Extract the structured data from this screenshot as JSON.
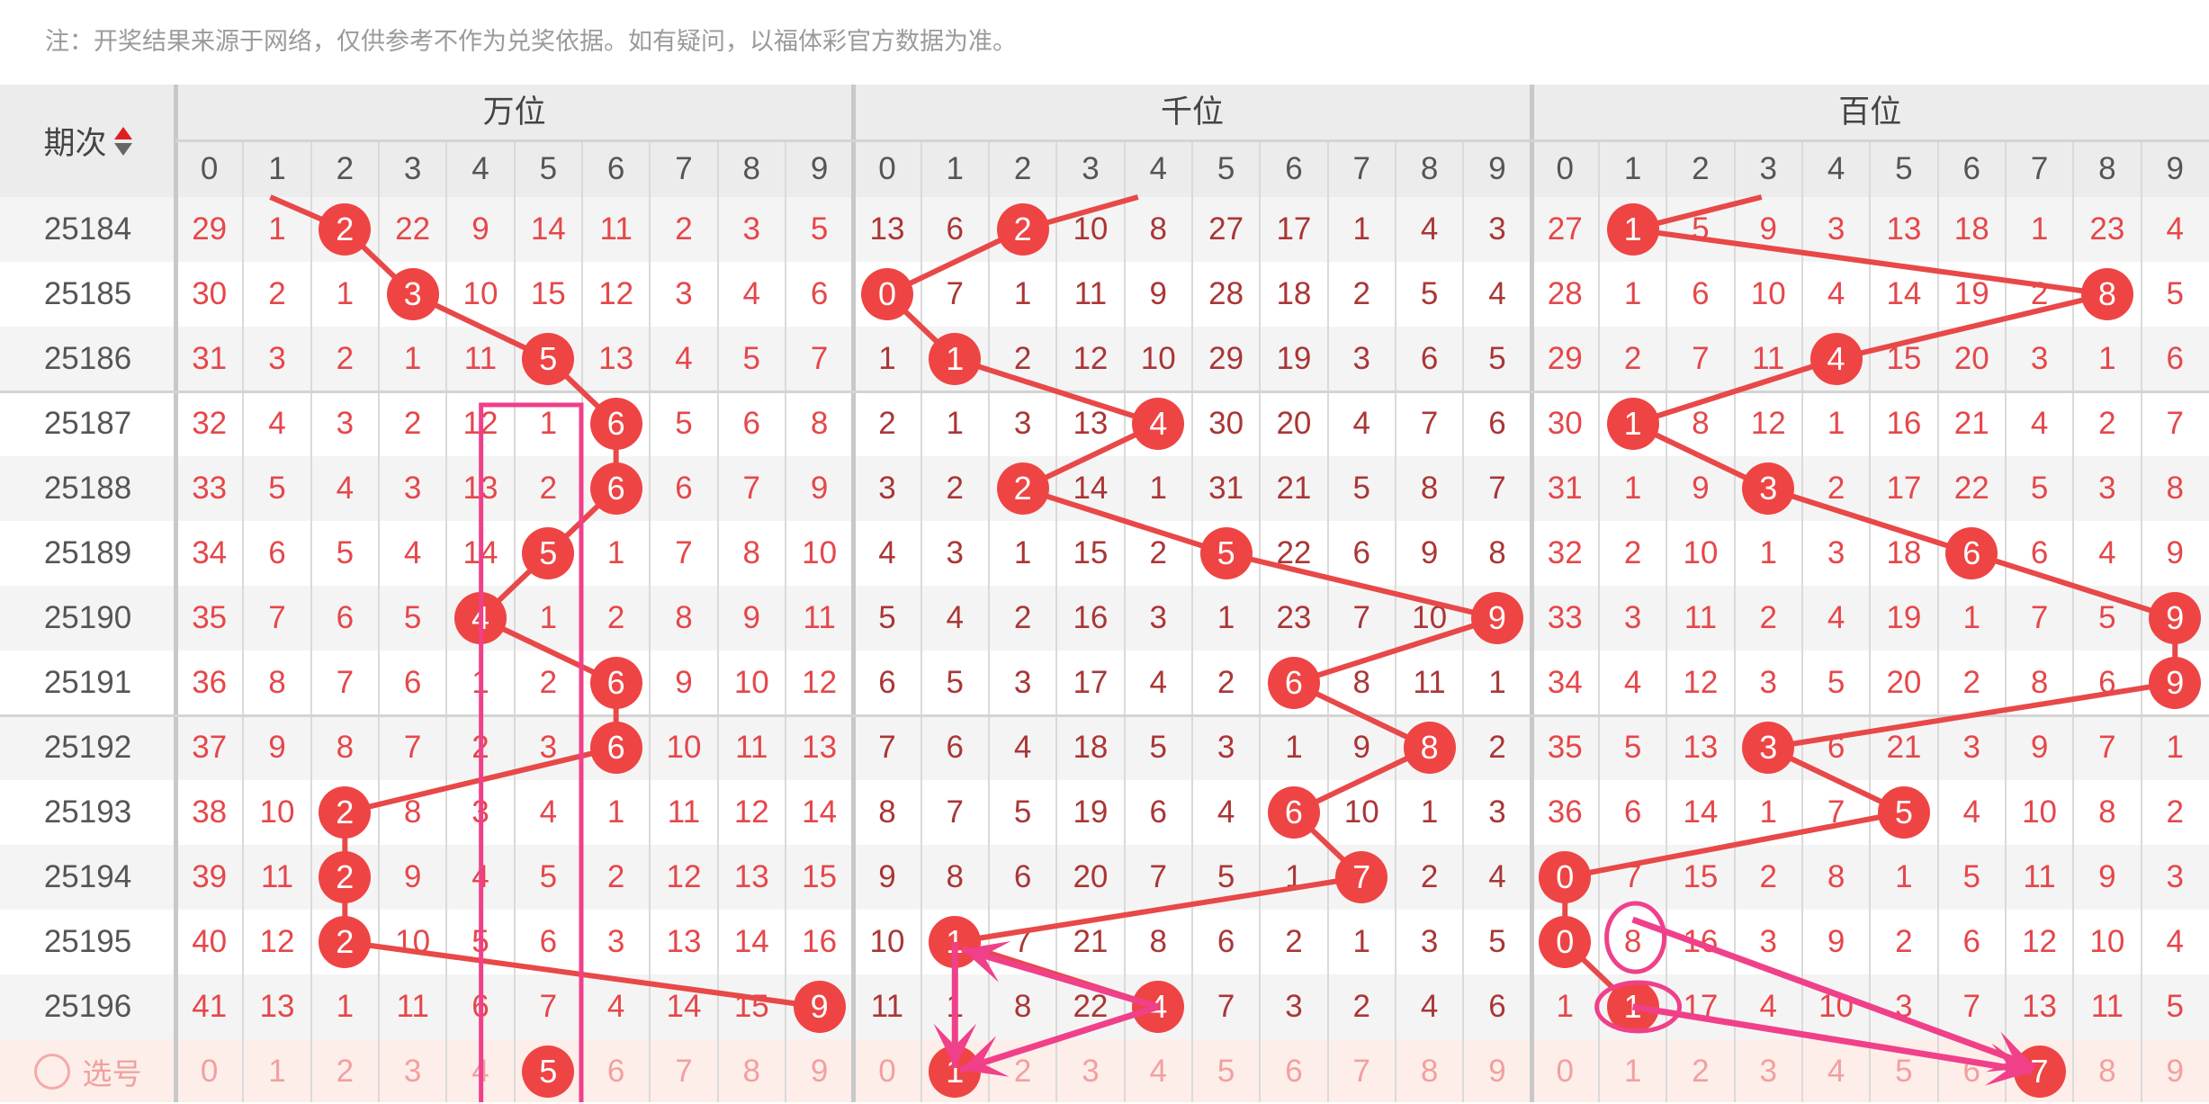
{
  "note": "注：开奖结果来源于网络，仅供参考不作为兑奖依据。如有疑问，以福体彩官方数据为准。",
  "header": {
    "period_label": "期次",
    "sections": [
      {
        "key": "wan",
        "title": "万位"
      },
      {
        "key": "qian",
        "title": "千位"
      },
      {
        "key": "bai",
        "title": "百位"
      }
    ],
    "digits": [
      "0",
      "1",
      "2",
      "3",
      "4",
      "5",
      "6",
      "7",
      "8",
      "9"
    ]
  },
  "colors": {
    "ball": "#ef4444",
    "line": "#e84848",
    "annotation": "#f0408a",
    "number_outer": "#e5474a",
    "number_middle": "#aa3636"
  },
  "rows": [
    {
      "period": "25184",
      "wan": [
        29,
        1,
        2,
        22,
        9,
        14,
        11,
        2,
        3,
        5
      ],
      "qian": [
        13,
        6,
        2,
        10,
        8,
        27,
        17,
        1,
        4,
        3
      ],
      "bai": [
        27,
        1,
        5,
        9,
        3,
        13,
        18,
        1,
        23,
        4
      ],
      "win": {
        "wan": 2,
        "qian": 2,
        "bai": 1
      }
    },
    {
      "period": "25185",
      "wan": [
        30,
        2,
        1,
        3,
        10,
        15,
        12,
        3,
        4,
        6
      ],
      "qian": [
        0,
        7,
        1,
        11,
        9,
        28,
        18,
        2,
        5,
        4
      ],
      "bai": [
        28,
        1,
        6,
        10,
        4,
        14,
        19,
        2,
        8,
        5
      ],
      "win": {
        "wan": 3,
        "qian": 0,
        "bai": 8
      }
    },
    {
      "period": "25186",
      "wan": [
        31,
        3,
        2,
        1,
        11,
        5,
        13,
        4,
        5,
        7
      ],
      "qian": [
        1,
        1,
        2,
        12,
        10,
        29,
        19,
        3,
        6,
        5
      ],
      "bai": [
        29,
        2,
        7,
        11,
        4,
        15,
        20,
        3,
        1,
        6
      ],
      "win": {
        "wan": 5,
        "qian": 1,
        "bai": 4
      }
    },
    {
      "period": "25187",
      "wan": [
        32,
        4,
        3,
        2,
        12,
        1,
        6,
        5,
        6,
        8
      ],
      "qian": [
        2,
        1,
        3,
        13,
        4,
        30,
        20,
        4,
        7,
        6
      ],
      "bai": [
        30,
        1,
        8,
        12,
        1,
        16,
        21,
        4,
        2,
        7
      ],
      "win": {
        "wan": 6,
        "qian": 4,
        "bai": 1
      }
    },
    {
      "period": "25188",
      "wan": [
        33,
        5,
        4,
        3,
        13,
        2,
        6,
        6,
        7,
        9
      ],
      "qian": [
        3,
        2,
        2,
        14,
        1,
        31,
        21,
        5,
        8,
        7
      ],
      "bai": [
        31,
        1,
        9,
        3,
        2,
        17,
        22,
        5,
        3,
        8
      ],
      "win": {
        "wan": 6,
        "qian": 2,
        "bai": 3
      }
    },
    {
      "period": "25189",
      "wan": [
        34,
        6,
        5,
        4,
        14,
        5,
        1,
        7,
        8,
        10
      ],
      "qian": [
        4,
        3,
        1,
        15,
        2,
        5,
        22,
        6,
        9,
        8
      ],
      "bai": [
        32,
        2,
        10,
        1,
        3,
        18,
        6,
        6,
        4,
        9
      ],
      "win": {
        "wan": 5,
        "qian": 5,
        "bai": 6
      }
    },
    {
      "period": "25190",
      "wan": [
        35,
        7,
        6,
        5,
        4,
        1,
        2,
        8,
        9,
        11
      ],
      "qian": [
        5,
        4,
        2,
        16,
        3,
        1,
        23,
        7,
        10,
        9
      ],
      "bai": [
        33,
        3,
        11,
        2,
        4,
        19,
        1,
        7,
        5,
        9
      ],
      "win": {
        "wan": 4,
        "qian": 9,
        "bai": 9
      }
    },
    {
      "period": "25191",
      "wan": [
        36,
        8,
        7,
        6,
        1,
        2,
        6,
        9,
        10,
        12
      ],
      "qian": [
        6,
        5,
        3,
        17,
        4,
        2,
        6,
        8,
        11,
        1
      ],
      "bai": [
        34,
        4,
        12,
        3,
        5,
        20,
        2,
        8,
        6,
        9
      ],
      "win": {
        "wan": 6,
        "qian": 6,
        "bai": 9
      }
    },
    {
      "period": "25192",
      "wan": [
        37,
        9,
        8,
        7,
        2,
        3,
        6,
        10,
        11,
        13
      ],
      "qian": [
        7,
        6,
        4,
        18,
        5,
        3,
        1,
        9,
        8,
        2
      ],
      "bai": [
        35,
        5,
        13,
        3,
        6,
        21,
        3,
        9,
        7,
        1
      ],
      "win": {
        "wan": 6,
        "qian": 8,
        "bai": 3
      }
    },
    {
      "period": "25193",
      "wan": [
        38,
        10,
        2,
        8,
        3,
        4,
        1,
        11,
        12,
        14
      ],
      "qian": [
        8,
        7,
        5,
        19,
        6,
        4,
        6,
        10,
        1,
        3
      ],
      "bai": [
        36,
        6,
        14,
        1,
        7,
        5,
        4,
        10,
        8,
        2
      ],
      "win": {
        "wan": 2,
        "qian": 6,
        "bai": 5
      }
    },
    {
      "period": "25194",
      "wan": [
        39,
        11,
        2,
        9,
        4,
        5,
        2,
        12,
        13,
        15
      ],
      "qian": [
        9,
        8,
        6,
        20,
        7,
        5,
        1,
        7,
        2,
        4
      ],
      "bai": [
        0,
        7,
        15,
        2,
        8,
        1,
        5,
        11,
        9,
        3
      ],
      "win": {
        "wan": 2,
        "qian": 7,
        "bai": 0
      }
    },
    {
      "period": "25195",
      "wan": [
        40,
        12,
        2,
        10,
        5,
        6,
        3,
        13,
        14,
        16
      ],
      "qian": [
        10,
        1,
        7,
        21,
        8,
        6,
        2,
        1,
        3,
        5
      ],
      "bai": [
        0,
        8,
        16,
        3,
        9,
        2,
        6,
        12,
        10,
        4
      ],
      "win": {
        "wan": 2,
        "qian": 1,
        "bai": 0
      }
    },
    {
      "period": "25196",
      "wan": [
        41,
        13,
        1,
        11,
        6,
        7,
        4,
        14,
        15,
        9
      ],
      "qian": [
        11,
        1,
        8,
        22,
        4,
        7,
        3,
        2,
        4,
        6
      ],
      "bai": [
        1,
        1,
        17,
        4,
        10,
        3,
        7,
        13,
        11,
        5
      ],
      "win": {
        "wan": 9,
        "qian": 4,
        "bai": 1
      }
    }
  ],
  "select_row": {
    "label": "选号",
    "digits": [
      "0",
      "1",
      "2",
      "3",
      "4",
      "5",
      "6",
      "7",
      "8",
      "9"
    ],
    "selected": {
      "wan": 5,
      "qian": 1,
      "bai": 7
    }
  }
}
